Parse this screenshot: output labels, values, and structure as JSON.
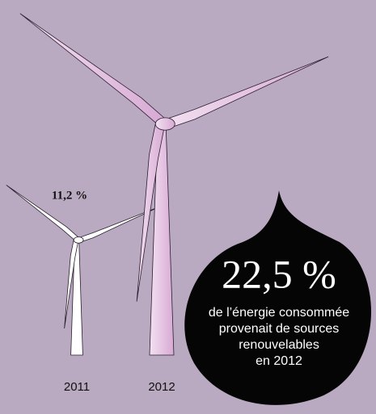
{
  "chart_data": {
    "type": "pictogram",
    "categories": [
      "2011",
      "2012"
    ],
    "values": [
      11.2,
      22.5
    ],
    "value_labels": [
      "11,2 %",
      "22,5 %"
    ],
    "colors": [
      "#ffffff",
      "#e6c6e4"
    ],
    "annotation": [
      "de l’énergie consommée",
      "provenait de sources",
      "renouvelables",
      "en 2012"
    ]
  }
}
